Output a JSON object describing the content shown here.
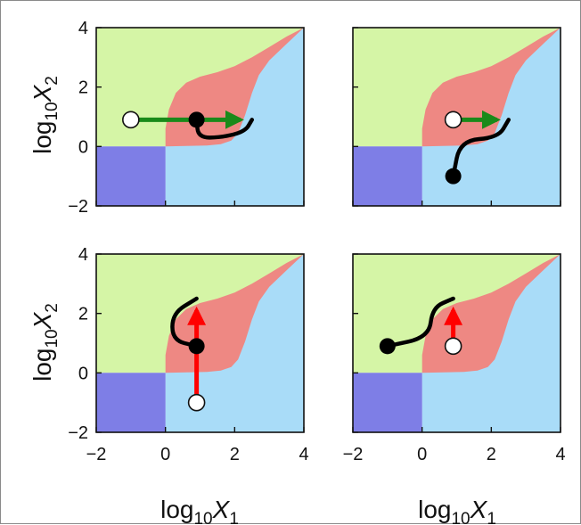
{
  "colors": {
    "region_upper": "#d5f5a6",
    "region_lower": "#a9dcf8",
    "region_middle": "#ee8883",
    "region_corner": "#7e7ee6",
    "arrow_green": "#1a8a1a",
    "arrow_red": "#ff0000",
    "path": "#000000"
  },
  "axis_labels": {
    "x_prefix": "log",
    "x_sub": "10",
    "x_var": "X",
    "x_var_sub": "1",
    "y_prefix": "log",
    "y_sub": "10",
    "y_var": "X",
    "y_var_sub": "2"
  },
  "chart_data": [
    {
      "type": "line",
      "panel": "top-left",
      "xlim": [
        -2,
        4
      ],
      "ylim": [
        -2,
        4
      ],
      "x_ticks": [],
      "y_ticks": [
        "4",
        "2",
        "0",
        "−2"
      ],
      "open_point": [
        -1,
        0.9
      ],
      "filled_point": [
        0.9,
        0.9
      ],
      "arrow": {
        "from": [
          -1,
          0.9
        ],
        "to": [
          2.5,
          0.9
        ],
        "color": "green"
      },
      "path": [
        [
          0.9,
          0.9
        ],
        [
          0.95,
          0.3
        ],
        [
          1.6,
          0.3
        ],
        [
          2.3,
          0.5
        ],
        [
          2.5,
          0.9
        ]
      ]
    },
    {
      "type": "line",
      "panel": "top-right",
      "xlim": [
        -2,
        4
      ],
      "ylim": [
        -2,
        4
      ],
      "x_ticks": [],
      "y_ticks": [],
      "open_point": [
        0.9,
        0.9
      ],
      "filled_point": [
        0.9,
        -1
      ],
      "arrow": {
        "from": [
          0.9,
          0.9
        ],
        "to": [
          2.5,
          0.9
        ],
        "color": "green"
      },
      "path": [
        [
          0.9,
          -1
        ],
        [
          1.1,
          0.2
        ],
        [
          2.2,
          0.3
        ],
        [
          2.5,
          0.9
        ]
      ]
    },
    {
      "type": "line",
      "panel": "bottom-left",
      "xlim": [
        -2,
        4
      ],
      "ylim": [
        -2,
        4
      ],
      "x_ticks": [
        "−2",
        "0",
        "2",
        "4"
      ],
      "y_ticks": [
        "4",
        "2",
        "0",
        "−2"
      ],
      "open_point": [
        0.9,
        -1
      ],
      "filled_point": [
        0.9,
        0.9
      ],
      "arrow": {
        "from": [
          0.9,
          -1
        ],
        "to": [
          0.9,
          2.5
        ],
        "color": "red"
      },
      "path": [
        [
          0.9,
          0.9
        ],
        [
          0.2,
          1.1
        ],
        [
          0.2,
          2.0
        ],
        [
          0.9,
          2.5
        ]
      ]
    },
    {
      "type": "line",
      "panel": "bottom-right",
      "xlim": [
        -2,
        4
      ],
      "ylim": [
        -2,
        4
      ],
      "x_ticks": [
        "−2",
        "0",
        "2",
        "4"
      ],
      "y_ticks": [],
      "open_point": [
        0.9,
        0.9
      ],
      "filled_point": [
        -1,
        0.9
      ],
      "arrow": {
        "from": [
          0.9,
          0.9
        ],
        "to": [
          0.9,
          2.5
        ],
        "color": "red"
      },
      "path": [
        [
          -1,
          0.9
        ],
        [
          0.2,
          1.2
        ],
        [
          0.3,
          2.2
        ],
        [
          0.9,
          2.5
        ]
      ]
    }
  ]
}
